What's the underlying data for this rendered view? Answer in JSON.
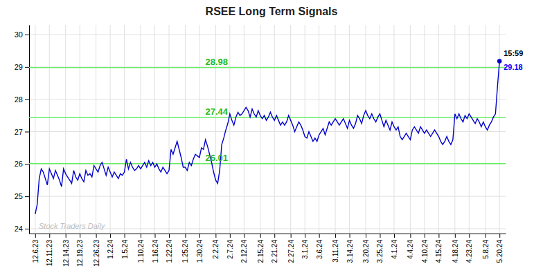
{
  "chart_data": {
    "type": "line",
    "title": "RSEE Long Term Signals",
    "categories": [
      "12.6.23",
      null,
      null,
      null,
      null,
      null,
      null,
      "12.11.23",
      null,
      null,
      null,
      null,
      null,
      null,
      null,
      "12.14.23",
      null,
      null,
      null,
      null,
      null,
      null,
      "12.19.23",
      null,
      null,
      null,
      null,
      null,
      null,
      null,
      "12.26.23",
      null,
      null,
      null,
      null,
      null,
      null,
      "1.2.24",
      null,
      null,
      null,
      null,
      null,
      null,
      "1.5.24",
      null,
      null,
      null,
      null,
      null,
      null,
      null,
      "1.10.24",
      null,
      null,
      null,
      null,
      null,
      null,
      "1.16.24",
      null,
      null,
      null,
      null,
      null,
      null,
      "1.22.24",
      null,
      null,
      null,
      null,
      null,
      null,
      null,
      "1.25.24",
      null,
      null,
      null,
      null,
      null,
      null,
      "1.30.24",
      null,
      null,
      null,
      null,
      null,
      null,
      null,
      "2.2.24",
      null,
      null,
      null,
      null,
      null,
      null,
      "2.7.24",
      null,
      null,
      null,
      null,
      null,
      null,
      "2.12.24",
      null,
      null,
      null,
      null,
      null,
      null,
      null,
      "2.15.24",
      null,
      null,
      null,
      null,
      null,
      null,
      "2.21.24",
      null,
      null,
      null,
      null,
      null,
      null,
      null,
      "2.27.24",
      null,
      null,
      null,
      null,
      null,
      null,
      "3.1.24",
      null,
      null,
      null,
      null,
      null,
      null,
      "3.6.24",
      null,
      null,
      null,
      null,
      null,
      null,
      null,
      "3.11.24",
      null,
      null,
      null,
      null,
      null,
      null,
      "3.14.24",
      null,
      null,
      null,
      null,
      null,
      null,
      null,
      "3.20.24",
      null,
      null,
      null,
      null,
      null,
      null,
      "3.25.24",
      null,
      null,
      null,
      null,
      null,
      null,
      "4.1.24",
      null,
      null,
      null,
      null,
      null,
      null,
      null,
      "4.4.24",
      null,
      null,
      null,
      null,
      null,
      null,
      "4.10.24",
      null,
      null,
      null,
      null,
      null,
      null,
      "4.15.24",
      null,
      null,
      null,
      null,
      null,
      null,
      null,
      "4.18.24",
      null,
      null,
      null,
      null,
      null,
      null,
      "4.23.24",
      null,
      null,
      null,
      null,
      null,
      null,
      null,
      "5.8.24",
      null,
      null,
      null,
      null,
      null,
      null,
      "5.20.24"
    ],
    "values": [
      24.45,
      24.75,
      25.55,
      25.85,
      25.75,
      25.55,
      25.35,
      25.85,
      25.7,
      25.55,
      25.8,
      25.65,
      25.5,
      25.3,
      25.85,
      25.7,
      25.6,
      25.5,
      25.4,
      25.8,
      25.6,
      25.5,
      25.7,
      25.55,
      25.45,
      25.8,
      25.65,
      25.7,
      25.6,
      25.95,
      25.85,
      25.75,
      25.95,
      26.05,
      25.85,
      25.65,
      25.9,
      25.75,
      25.6,
      25.75,
      25.65,
      25.55,
      25.7,
      25.65,
      25.75,
      26.15,
      25.85,
      26.05,
      25.9,
      25.8,
      25.85,
      25.95,
      25.85,
      25.95,
      26.05,
      25.9,
      26.1,
      25.95,
      26.05,
      25.9,
      26.0,
      25.85,
      25.75,
      25.9,
      25.8,
      25.7,
      25.8,
      26.45,
      26.3,
      26.5,
      26.7,
      26.45,
      26.2,
      25.9,
      25.9,
      25.8,
      26.05,
      25.95,
      26.15,
      26.3,
      26.25,
      26.2,
      26.5,
      26.45,
      26.75,
      26.55,
      26.3,
      26.05,
      25.75,
      25.5,
      25.4,
      25.8,
      26.6,
      26.8,
      27.05,
      27.25,
      27.55,
      27.35,
      27.2,
      27.45,
      27.6,
      27.5,
      27.55,
      27.65,
      27.75,
      27.65,
      27.45,
      27.7,
      27.55,
      27.45,
      27.65,
      27.5,
      27.4,
      27.5,
      27.35,
      27.45,
      27.6,
      27.45,
      27.35,
      27.5,
      27.35,
      27.2,
      27.3,
      27.2,
      27.3,
      27.5,
      27.35,
      27.2,
      27.0,
      27.15,
      27.3,
      27.2,
      27.05,
      26.85,
      26.8,
      27.0,
      26.85,
      26.7,
      26.8,
      26.7,
      26.9,
      27.0,
      27.1,
      26.9,
      27.1,
      27.3,
      27.2,
      27.3,
      27.4,
      27.3,
      27.2,
      27.3,
      27.4,
      27.25,
      27.1,
      27.35,
      27.2,
      27.1,
      27.25,
      27.5,
      27.4,
      27.25,
      27.5,
      27.65,
      27.5,
      27.4,
      27.55,
      27.4,
      27.3,
      27.45,
      27.55,
      27.35,
      27.15,
      27.35,
      27.2,
      27.05,
      27.3,
      27.15,
      27.05,
      27.15,
      26.85,
      26.75,
      26.85,
      26.95,
      26.85,
      26.75,
      27.05,
      27.15,
      27.05,
      26.95,
      27.15,
      27.05,
      26.95,
      27.05,
      26.95,
      26.85,
      26.95,
      27.05,
      26.95,
      26.85,
      26.7,
      26.6,
      26.7,
      26.85,
      26.7,
      26.6,
      26.75,
      27.55,
      27.4,
      27.55,
      27.4,
      27.3,
      27.5,
      27.4,
      27.55,
      27.45,
      27.35,
      27.25,
      27.4,
      27.3,
      27.15,
      27.3,
      27.15,
      27.05,
      27.2,
      27.3,
      27.45,
      27.55,
      28.4,
      29.18
    ],
    "color": "#0000cc",
    "ylim": [
      23.85,
      30.3
    ],
    "yticks": [
      24,
      25,
      26,
      27,
      28,
      29,
      30
    ],
    "grid": true,
    "hlines": [
      {
        "value": 28.98,
        "label": "28.98",
        "color": "#66ee66",
        "label_color": "#22bb22"
      },
      {
        "value": 27.44,
        "label": "27.44",
        "color": "#66ee66",
        "label_color": "#22bb22"
      },
      {
        "value": 26.01,
        "label": "26.01",
        "color": "#66ee66",
        "label_color": "#22bb22"
      }
    ],
    "annotations": [
      {
        "text": "15:59",
        "color": "#000000"
      },
      {
        "text": "29.18",
        "color": "#0000ff"
      },
      {
        "text": "Stock Traders Daily",
        "color": "#bbbbbb"
      }
    ]
  }
}
